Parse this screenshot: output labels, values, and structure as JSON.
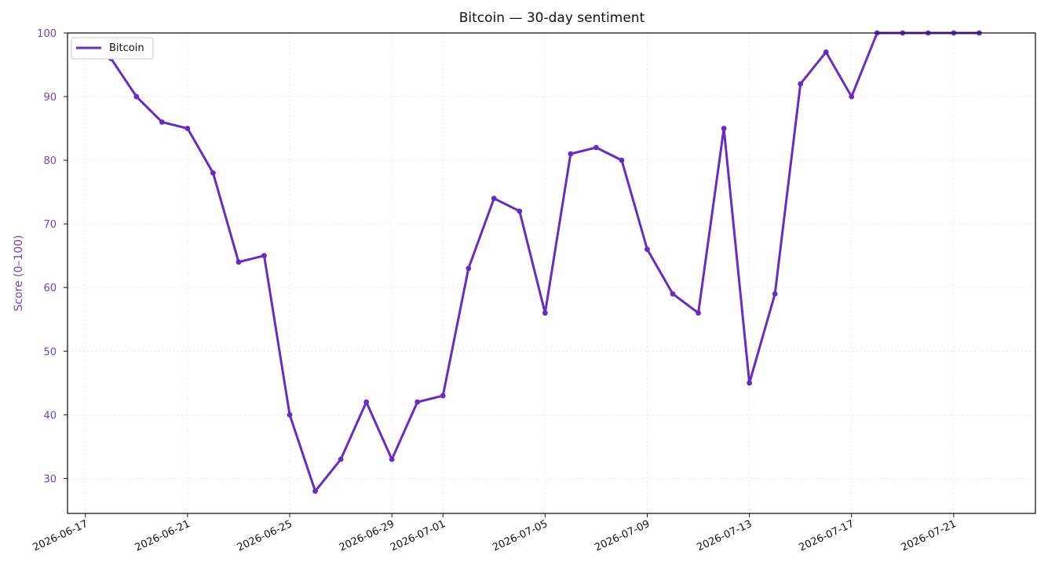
{
  "chart_data": {
    "type": "line",
    "title": "Bitcoin — 30-day sentiment",
    "xlabel": "",
    "ylabel": "Score (0–100)",
    "ylim": [
      24.5,
      100
    ],
    "yticks": [
      30,
      40,
      50,
      60,
      70,
      80,
      90,
      100
    ],
    "xlim": [
      "2026-06-17",
      "2026-07-24"
    ],
    "xticks": [
      "2026-06-17",
      "2026-06-21",
      "2026-06-25",
      "2026-06-29",
      "2026-07-01",
      "2026-07-05",
      "2026-07-09",
      "2026-07-13",
      "2026-07-17",
      "2026-07-21"
    ],
    "grid": true,
    "legend_position": "top-left",
    "accent_color": "#6a2ac4",
    "ylabel_color": "#7a3fb5",
    "series": [
      {
        "name": "Bitcoin",
        "color": "#6a2ac4",
        "x": [
          "2026-06-18",
          "2026-06-19",
          "2026-06-20",
          "2026-06-21",
          "2026-06-22",
          "2026-06-23",
          "2026-06-24",
          "2026-06-25",
          "2026-06-26",
          "2026-06-27",
          "2026-06-28",
          "2026-06-29",
          "2026-06-30",
          "2026-07-01",
          "2026-07-02",
          "2026-07-03",
          "2026-07-04",
          "2026-07-05",
          "2026-07-06",
          "2026-07-07",
          "2026-07-08",
          "2026-07-09",
          "2026-07-10",
          "2026-07-11",
          "2026-07-12",
          "2026-07-13",
          "2026-07-14",
          "2026-07-15",
          "2026-07-16",
          "2026-07-17",
          "2026-07-18",
          "2026-07-19",
          "2026-07-20",
          "2026-07-21",
          "2026-07-22"
        ],
        "values": [
          96,
          90,
          86,
          85,
          78,
          64,
          65,
          40,
          28,
          33,
          42,
          33,
          42,
          43,
          63,
          74,
          72,
          56,
          81,
          82,
          80,
          66,
          59,
          56,
          85,
          45,
          59,
          92,
          97,
          90,
          100,
          100,
          100,
          100,
          100
        ]
      }
    ]
  }
}
